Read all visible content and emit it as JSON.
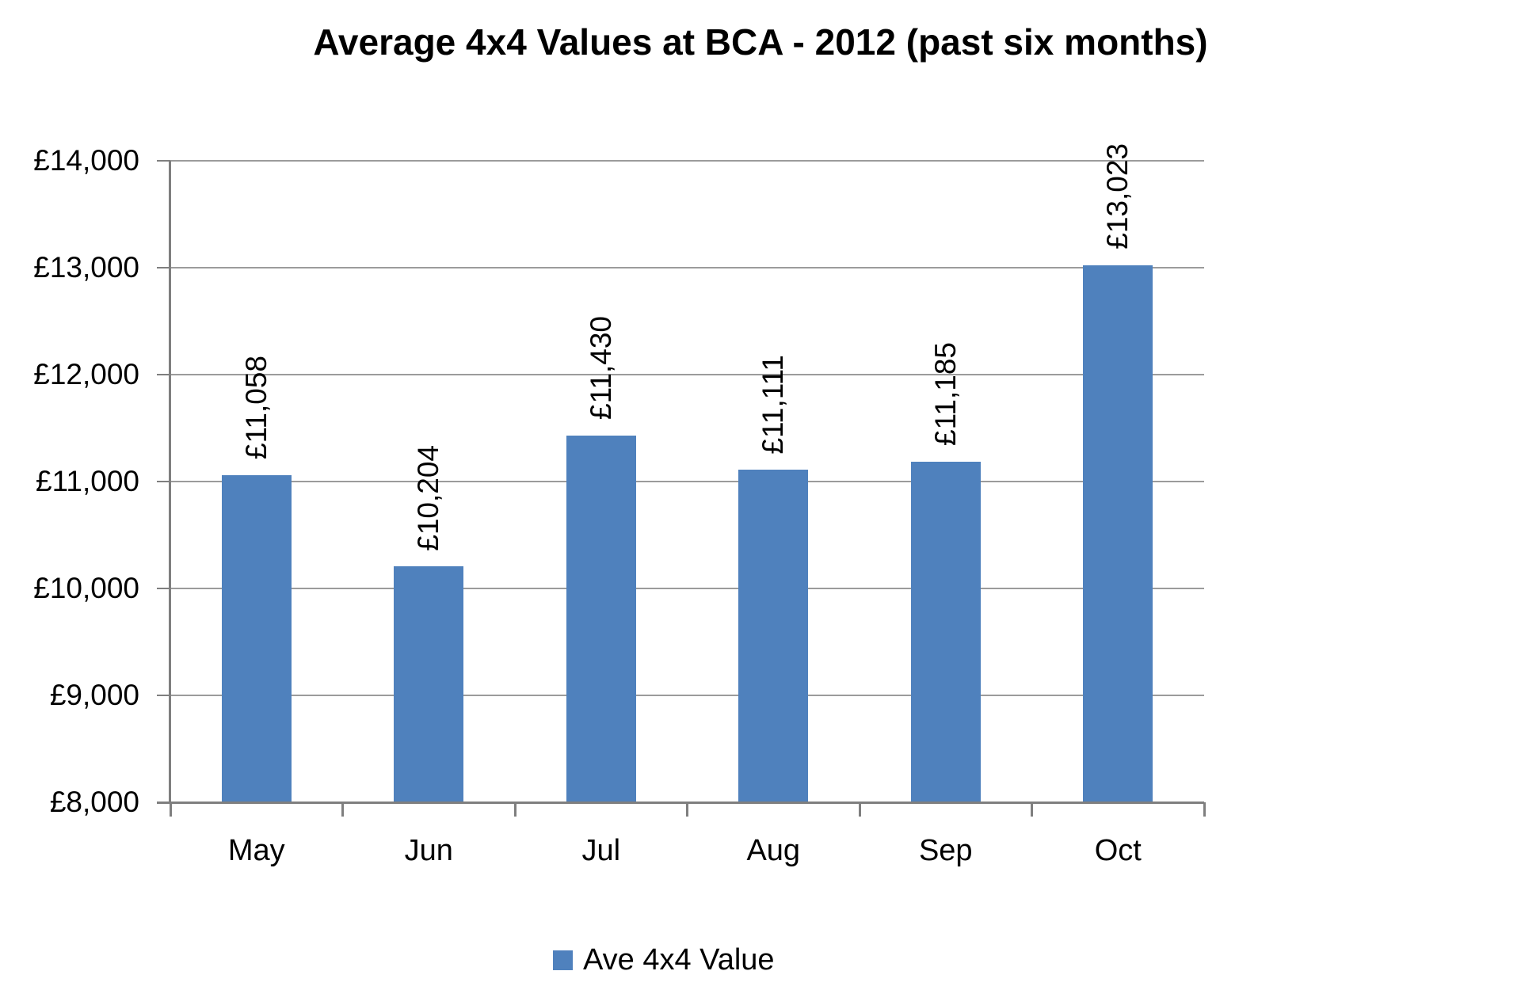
{
  "chart_data": {
    "type": "bar",
    "title": "Average 4x4 Values at BCA - 2012 (past six months)",
    "categories": [
      "May",
      "Jun",
      "Jul",
      "Aug",
      "Sep",
      "Oct"
    ],
    "series": [
      {
        "name": "Ave 4x4 Value",
        "values": [
          11058,
          10204,
          11430,
          11111,
          11185,
          13023
        ]
      }
    ],
    "data_labels": [
      "£11,058",
      "£10,204",
      "£11,430",
      "£11,111",
      "£11,185",
      "£13,023"
    ],
    "xlabel": "",
    "ylabel": "",
    "ylim": [
      8000,
      14000
    ],
    "ytick_step": 1000,
    "ytick_labels": [
      "£8,000",
      "£9,000",
      "£10,000",
      "£11,000",
      "£12,000",
      "£13,000",
      "£14,000"
    ],
    "grid": true,
    "legend": {
      "position": "bottom",
      "label": "Ave 4x4 Value"
    }
  },
  "colors": {
    "bar": "#4F81BD",
    "gridline": "#9B9B9B",
    "axis": "#7F7F7F",
    "text": "#000000",
    "background": "#FFFFFF"
  }
}
